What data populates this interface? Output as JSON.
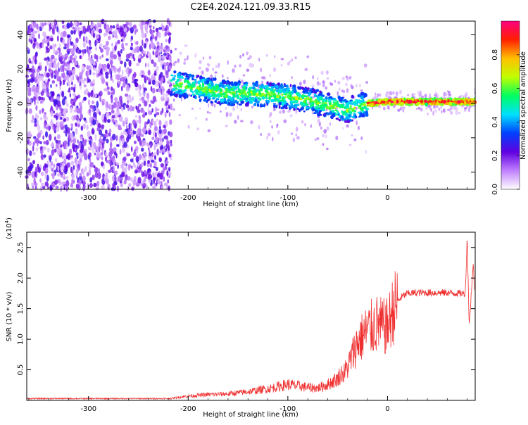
{
  "title": "C2E4.2024.121.09.33.R15",
  "chart_data": [
    {
      "type": "heatmap",
      "name": "spectrogram",
      "xlabel": "Height of straight line (km)",
      "ylabel": "Frequency (Hz)",
      "xlim": [
        -362,
        88
      ],
      "ylim": [
        -50,
        48
      ],
      "xticks": [
        -300,
        -200,
        -100,
        0
      ],
      "xtick_labels": [
        "-300",
        "-200",
        "-100",
        "0"
      ],
      "yticks": [
        -40,
        -20,
        0,
        20,
        40
      ],
      "ytick_labels": [
        "-40",
        "-20",
        "0",
        "20",
        "40"
      ],
      "colorbar": {
        "label": "Normalized spectral amplitude",
        "range": [
          0,
          1
        ],
        "ticks": [
          0.0,
          0.2,
          0.4,
          0.6,
          0.8
        ],
        "tick_labels": [
          "0.0",
          "0.2",
          "0.4",
          "0.6",
          "0.8"
        ],
        "colors": [
          "#ffffff",
          "#c080ff",
          "#6000e0",
          "#0040ff",
          "#00e0ff",
          "#00ff60",
          "#c0ff00",
          "#ffc000",
          "#ff2000",
          "#ff0080"
        ]
      },
      "noise_region_x": [
        -362,
        -217
      ],
      "signal_ridge": {
        "x": [
          -217,
          -200,
          -180,
          -160,
          -140,
          -120,
          -100,
          -80,
          -60,
          -40,
          -20,
          0,
          20,
          40,
          60,
          88
        ],
        "y": [
          12,
          10,
          8,
          6,
          6,
          5,
          4,
          2,
          -1,
          -4,
          0,
          1,
          1,
          1,
          1,
          1
        ]
      },
      "grid": false
    },
    {
      "type": "line",
      "name": "snr",
      "xlabel": "Height of straight line (km)",
      "ylabel": "SNR (10 * v/v)",
      "y_multiplier": "(x10^4)",
      "y_multiplier_base": "(x10",
      "y_multiplier_exp": "4",
      "y_multiplier_close": ")",
      "xlim": [
        -362,
        88
      ],
      "ylim": [
        0,
        2.75
      ],
      "xticks": [
        -300,
        -200,
        -100,
        0
      ],
      "xtick_labels": [
        "-300",
        "-200",
        "-100",
        "0"
      ],
      "yticks": [
        0.5,
        1.0,
        1.5,
        2.0,
        2.5
      ],
      "ytick_labels": [
        "0.5",
        "1.0",
        "1.5",
        "2.0",
        "2.5"
      ],
      "color": "#f03030",
      "grid": false,
      "series": [
        {
          "values_x": [
            -362,
            -300,
            -250,
            -217,
            -200,
            -180,
            -160,
            -140,
            -120,
            -100,
            -90,
            -80,
            -70,
            -60,
            -50,
            -45,
            -40,
            -35,
            -30,
            -25,
            -20,
            -15,
            -10,
            -5,
            0,
            5,
            10,
            15,
            20,
            30,
            40,
            50,
            60,
            70,
            78,
            80,
            82,
            84,
            86,
            88
          ],
          "values_y": [
            0.03,
            0.03,
            0.03,
            0.03,
            0.06,
            0.08,
            0.09,
            0.12,
            0.16,
            0.22,
            0.2,
            0.18,
            0.17,
            0.22,
            0.3,
            0.4,
            0.55,
            0.75,
            0.95,
            1.05,
            1.15,
            1.2,
            1.25,
            1.2,
            1.2,
            1.45,
            1.62,
            1.7,
            1.75,
            1.76,
            1.76,
            1.76,
            1.76,
            1.75,
            1.75,
            2.7,
            1.2,
            1.75,
            2.2,
            1.7
          ]
        }
      ]
    }
  ]
}
